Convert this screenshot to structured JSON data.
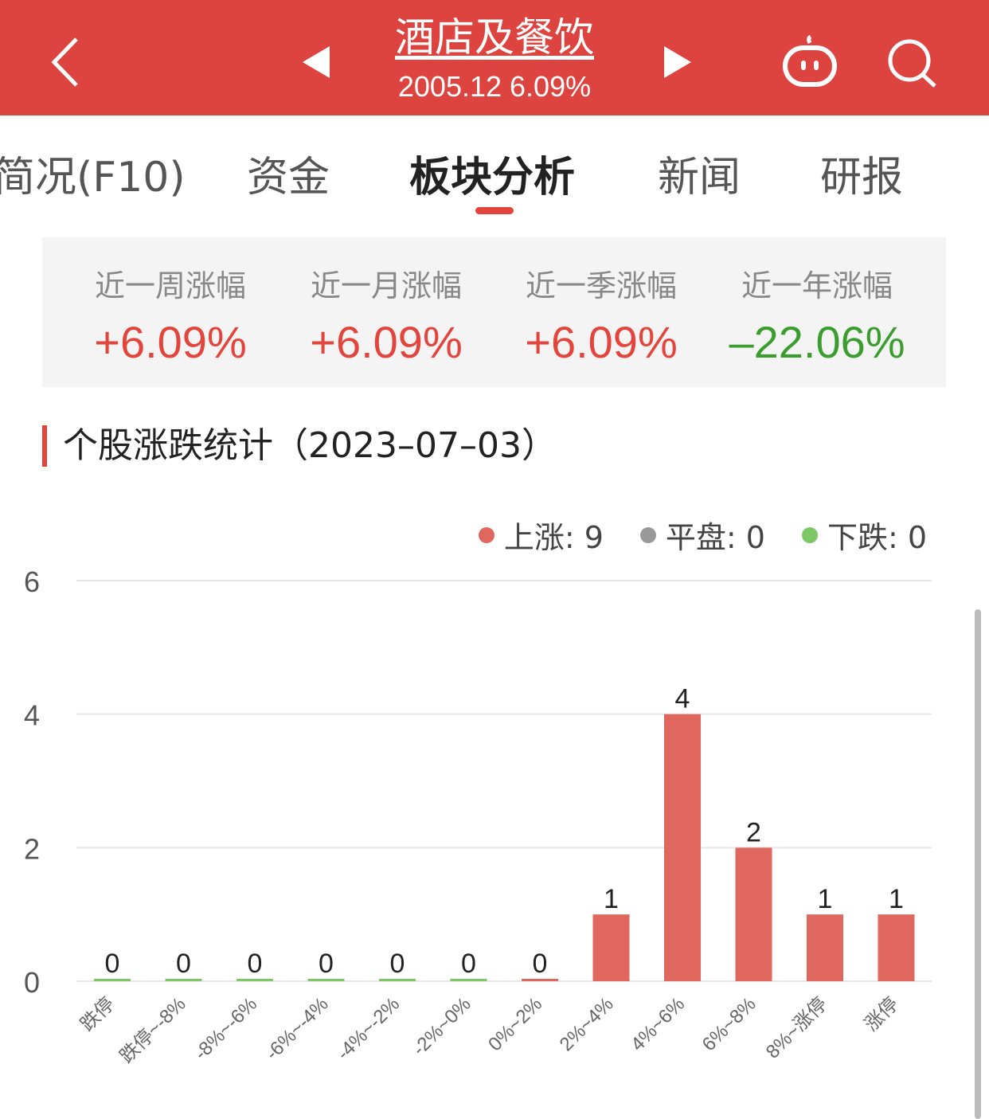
{
  "header": {
    "title": "酒店及餐饮",
    "subtitle": "2005.12 6.09%",
    "icons": [
      "back-icon",
      "prev-triangle-icon",
      "next-triangle-icon",
      "robot-icon",
      "search-icon"
    ]
  },
  "tabs": [
    {
      "label": "简况(F10)"
    },
    {
      "label": "资金"
    },
    {
      "label": "板块分析",
      "active": true
    },
    {
      "label": "新闻"
    },
    {
      "label": "研报"
    }
  ],
  "summary": [
    {
      "label": "近一周涨幅",
      "value": "+6.09%",
      "color": "#e3453c"
    },
    {
      "label": "近一月涨幅",
      "value": "+6.09%",
      "color": "#e3453c"
    },
    {
      "label": "近一季涨幅",
      "value": "+6.09%",
      "color": "#e3453c"
    },
    {
      "label": "近一年涨幅",
      "value": "–22.06%",
      "color": "#3a9d2e"
    }
  ],
  "section_title": "个股涨跌统计（2023–07–03）",
  "legend": [
    {
      "label": "上涨: 9",
      "color": "#e0675e"
    },
    {
      "label": "平盘: 0",
      "color": "#999999"
    },
    {
      "label": "下跌: 0",
      "color": "#7cc865"
    }
  ],
  "chart_data": {
    "type": "bar",
    "categories": [
      "跌停",
      "跌停~-8%",
      "-8%~-6%",
      "-6%~-4%",
      "-4%~-2%",
      "-2%~0%",
      "0%~2%",
      "2%~4%",
      "4%~6%",
      "6%~8%",
      "8%~涨停",
      "涨停"
    ],
    "values": [
      0,
      0,
      0,
      0,
      0,
      0,
      0,
      1,
      4,
      2,
      1,
      1
    ],
    "colors": [
      "#7cc865",
      "#7cc865",
      "#7cc865",
      "#7cc865",
      "#7cc865",
      "#7cc865",
      "#e0675e",
      "#e0675e",
      "#e0675e",
      "#e0675e",
      "#e0675e",
      "#e0675e"
    ],
    "yticks": [
      0,
      2,
      4,
      6
    ],
    "ylim": [
      0,
      6
    ],
    "grid": true,
    "legend_placement": "top-right"
  }
}
